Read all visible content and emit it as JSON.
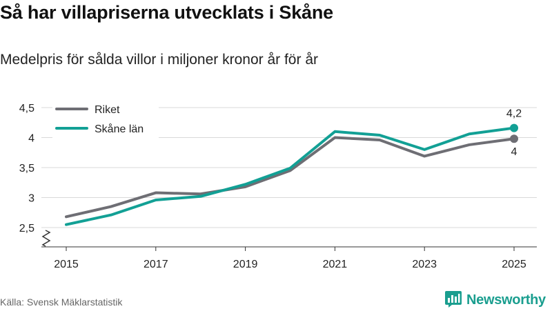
{
  "header": {
    "title": "Så har villapriserna utvecklats i Skåne",
    "subtitle": "Medelpris för sålda villor i miljoner kronor år för år"
  },
  "footer": {
    "source": "Källa: Svensk Mäklarstatistik",
    "brand": "Newsworthy",
    "brand_icon": "bar-chart-logo-icon"
  },
  "colors": {
    "riket": "#6e6e74",
    "skane": "#12a095",
    "grid": "#d9d9d9",
    "axis": "#333333",
    "text": "#222222"
  },
  "chart_data": {
    "type": "line",
    "title": "Så har villapriserna utvecklats i Skåne",
    "subtitle": "Medelpris för sålda villor i miljoner kronor år för år",
    "xlabel": "",
    "ylabel": "",
    "x": [
      2015,
      2016,
      2017,
      2018,
      2019,
      2020,
      2021,
      2022,
      2023,
      2024,
      2025
    ],
    "x_ticks": [
      "2015",
      "2017",
      "2019",
      "2021",
      "2023",
      "2025"
    ],
    "y_ticks": [
      2.5,
      3,
      3.5,
      4,
      4.5
    ],
    "y_tick_labels": [
      "2,5",
      "3",
      "3,5",
      "4",
      "4,5"
    ],
    "ylim": [
      2.5,
      4.5
    ],
    "grid": true,
    "axis_break": true,
    "legend_position": "top-left",
    "series": [
      {
        "name": "Riket",
        "values": [
          2.68,
          2.85,
          3.08,
          3.06,
          3.18,
          3.45,
          4.0,
          3.96,
          3.69,
          3.88,
          3.98
        ],
        "end_label": "4",
        "end_label_position": "below"
      },
      {
        "name": "Skåne län",
        "values": [
          2.55,
          2.71,
          2.96,
          3.02,
          3.22,
          3.49,
          4.1,
          4.04,
          3.8,
          4.06,
          4.16
        ],
        "end_label": "4,2",
        "end_label_position": "above"
      }
    ]
  }
}
